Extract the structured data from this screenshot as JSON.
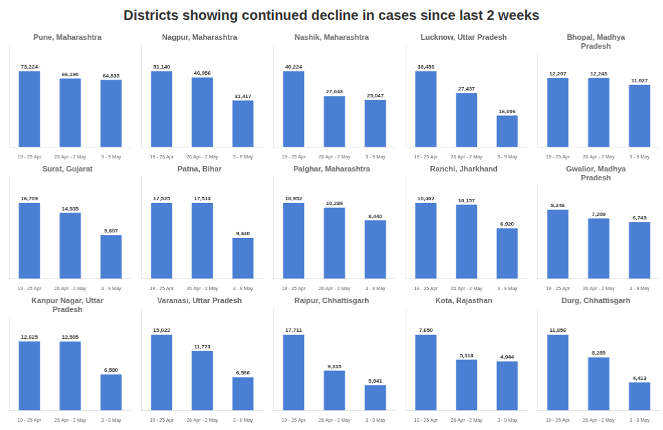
{
  "title": "Districts showing continued decline in cases since last 2 weeks",
  "chart_data": [
    {
      "type": "bar",
      "title": "Pune, Maharashtra",
      "categories": [
        "19 - 25 Apr",
        "26 Apr - 2 May",
        "3 - 9 May"
      ],
      "values": [
        73224,
        66190,
        64835
      ],
      "value_labels": [
        "73,224",
        "66,190",
        "64,835"
      ],
      "color": "#4a7fd4",
      "ylim": [
        0,
        98852.4
      ],
      "data_labels": true,
      "tick_labels": "x",
      "grid": false
    },
    {
      "type": "bar",
      "title": "Nagpur, Maharashtra",
      "categories": [
        "19 - 25 Apr",
        "26 Apr - 2 May",
        "3 - 9 May"
      ],
      "values": [
        51140,
        46956,
        31417
      ],
      "value_labels": [
        "51,140",
        "46,956",
        "31,417"
      ],
      "color": "#4a7fd4",
      "ylim": [
        0,
        69039
      ],
      "data_labels": true,
      "tick_labels": "x",
      "grid": false
    },
    {
      "type": "bar",
      "title": "Nashik, Maharashtra",
      "categories": [
        "19 - 25 Apr",
        "26 Apr - 2 May",
        "3 - 9 May"
      ],
      "values": [
        40224,
        27043,
        25047
      ],
      "value_labels": [
        "40,224",
        "27,043",
        "25,047"
      ],
      "color": "#4a7fd4",
      "ylim": [
        0,
        54302.4
      ],
      "data_labels": true,
      "tick_labels": "x",
      "grid": false
    },
    {
      "type": "bar",
      "title": "Lucknow, Uttar Pradesh",
      "categories": [
        "19 - 25 Apr",
        "26 Apr - 2 May",
        "3 - 9 May"
      ],
      "values": [
        38456,
        27437,
        16006
      ],
      "value_labels": [
        "38,456",
        "27,437",
        "16,006"
      ],
      "color": "#4a7fd4",
      "ylim": [
        0,
        51915.6
      ],
      "data_labels": true,
      "tick_labels": "x",
      "grid": false
    },
    {
      "type": "bar",
      "title": "Bhopal, Madhya\nPradesh",
      "categories": [
        "19 - 25 Apr",
        "26 Apr - 2 May",
        "3 - 9 May"
      ],
      "values": [
        12207,
        12243,
        11027
      ],
      "value_labels": [
        "12,207",
        "12,243",
        "11,027"
      ],
      "color": "#4a7fd4",
      "ylim": [
        0,
        16528.05
      ],
      "data_labels": true,
      "tick_labels": "x",
      "grid": false
    },
    {
      "type": "bar",
      "title": "Surat, Gujarat",
      "categories": [
        "19 - 25 Apr",
        "26 Apr - 2 May",
        "3 - 9 May"
      ],
      "values": [
        16709,
        14535,
        9607
      ],
      "value_labels": [
        "16,709",
        "14,535",
        "9,607"
      ],
      "color": "#4a7fd4",
      "ylim": [
        0,
        22557.15
      ],
      "data_labels": true,
      "tick_labels": "x",
      "grid": false
    },
    {
      "type": "bar",
      "title": "Patna, Bihar",
      "categories": [
        "19 - 25 Apr",
        "26 Apr - 2 May",
        "3 - 9 May"
      ],
      "values": [
        17525,
        17513,
        9440
      ],
      "value_labels": [
        "17,525",
        "17,513",
        "9,440"
      ],
      "color": "#4a7fd4",
      "ylim": [
        0,
        23658.75
      ],
      "data_labels": true,
      "tick_labels": "x",
      "grid": false
    },
    {
      "type": "bar",
      "title": "Palghar, Maharashtra",
      "categories": [
        "19 - 25 Apr",
        "26 Apr - 2 May",
        "3 - 9 May"
      ],
      "values": [
        10952,
        10289,
        8440
      ],
      "value_labels": [
        "10,952",
        "10,289",
        "8,440"
      ],
      "color": "#4a7fd4",
      "ylim": [
        0,
        14785.2
      ],
      "data_labels": true,
      "tick_labels": "x",
      "grid": false
    },
    {
      "type": "bar",
      "title": "Ranchi, Jharkhand",
      "categories": [
        "19 - 25 Apr",
        "26 Apr - 2 May",
        "3 - 9 May"
      ],
      "values": [
        10402,
        10157,
        6920
      ],
      "value_labels": [
        "10,402",
        "10,157",
        "6,920"
      ],
      "color": "#4a7fd4",
      "ylim": [
        0,
        14042.7
      ],
      "data_labels": true,
      "tick_labels": "x",
      "grid": false
    },
    {
      "type": "bar",
      "title": "Gwalior, Madhya\nPradesh",
      "categories": [
        "19 - 25 Apr",
        "26 Apr - 2 May",
        "3 - 9 May"
      ],
      "values": [
        8246,
        7209,
        6743
      ],
      "value_labels": [
        "8,246",
        "7,209",
        "6,743"
      ],
      "color": "#4a7fd4",
      "ylim": [
        0,
        11132.1
      ],
      "data_labels": true,
      "tick_labels": "x",
      "grid": false
    },
    {
      "type": "bar",
      "title": "Kanpur Nagar, Uttar\nPradesh",
      "categories": [
        "19 - 25 Apr",
        "26 Apr - 2 May",
        "3 - 9 May"
      ],
      "values": [
        12625,
        12595,
        6580
      ],
      "value_labels": [
        "12,625",
        "12,595",
        "6,580"
      ],
      "color": "#4a7fd4",
      "ylim": [
        0,
        17043.75
      ],
      "data_labels": true,
      "tick_labels": "x",
      "grid": false
    },
    {
      "type": "bar",
      "title": "Varanasi, Uttar Pradesh",
      "categories": [
        "19 - 25 Apr",
        "26 Apr - 2 May",
        "3 - 9 May"
      ],
      "values": [
        15022,
        11773,
        6566
      ],
      "value_labels": [
        "15,022",
        "11,773",
        "6,566"
      ],
      "color": "#4a7fd4",
      "ylim": [
        0,
        20279.7
      ],
      "data_labels": true,
      "tick_labels": "x",
      "grid": false
    },
    {
      "type": "bar",
      "title": "Raipur, Chhattisgarh",
      "categories": [
        "19 - 25 Apr",
        "26 Apr - 2 May",
        "3 - 9 May"
      ],
      "values": [
        17711,
        9315,
        5941
      ],
      "value_labels": [
        "17,711",
        "9,315",
        "5,941"
      ],
      "color": "#4a7fd4",
      "ylim": [
        0,
        23909.85
      ],
      "data_labels": true,
      "tick_labels": "x",
      "grid": false
    },
    {
      "type": "bar",
      "title": "Kota, Rajasthan",
      "categories": [
        "19 - 25 Apr",
        "26 Apr - 2 May",
        "3 - 9 May"
      ],
      "values": [
        7650,
        5118,
        4944
      ],
      "value_labels": [
        "7,650",
        "5,118",
        "4,944"
      ],
      "color": "#4a7fd4",
      "ylim": [
        0,
        10327.5
      ],
      "data_labels": true,
      "tick_labels": "x",
      "grid": false
    },
    {
      "type": "bar",
      "title": "Durg, Chhattisgarh",
      "categories": [
        "19 - 25 Apr",
        "26 Apr - 2 May",
        "3 - 9 May"
      ],
      "values": [
        11856,
        8289,
        4413
      ],
      "value_labels": [
        "11,856",
        "8,289",
        "4,413"
      ],
      "color": "#4a7fd4",
      "ylim": [
        0,
        16005.6
      ],
      "data_labels": true,
      "tick_labels": "x",
      "grid": false
    }
  ]
}
